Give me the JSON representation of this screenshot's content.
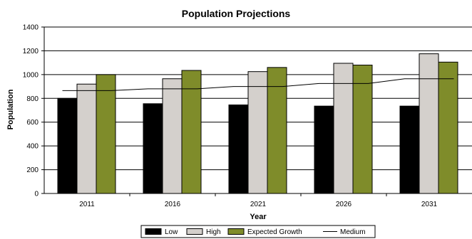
{
  "chart_data": {
    "type": "bar",
    "title": "Population Projections",
    "xlabel": "Year",
    "ylabel": "Population",
    "ylim": [
      0,
      1400
    ],
    "yticks": [
      0,
      200,
      400,
      600,
      800,
      1000,
      1200,
      1400
    ],
    "grid": true,
    "legend_position": "bottom",
    "categories": [
      "2011",
      "2016",
      "2021",
      "2026",
      "2031"
    ],
    "series": [
      {
        "name": "Low",
        "type": "bar",
        "color": "#000000",
        "values": [
          800,
          755,
          745,
          735,
          735
        ]
      },
      {
        "name": "High",
        "type": "bar",
        "color": "#d4d0cc",
        "values": [
          920,
          965,
          1025,
          1095,
          1175
        ]
      },
      {
        "name": "Expected Growth",
        "type": "bar",
        "color": "#7f8c2a",
        "values": [
          1000,
          1035,
          1060,
          1080,
          1105
        ]
      },
      {
        "name": "Medium",
        "type": "line",
        "color": "#000000",
        "values": [
          865,
          880,
          900,
          925,
          965
        ]
      }
    ]
  }
}
